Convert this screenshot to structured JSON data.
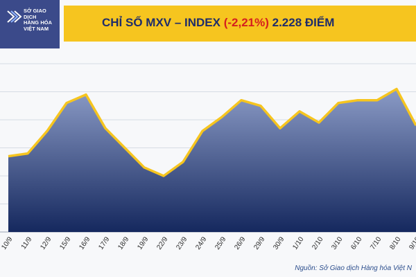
{
  "header": {
    "logo_lines": [
      "SỞ GIAO DỊCH",
      "HÀNG HÓA",
      "VIỆT NAM"
    ],
    "title_prefix": "CHỈ SỐ MXV – INDEX ",
    "title_change": "(-2,21%)",
    "title_suffix": " 2.228 ĐIỂM"
  },
  "source": "Nguồn: Sở Giao dịch Hàng hóa Việt N",
  "colors": {
    "brand": "#3b4a8a",
    "title_bar": "#f6c51f",
    "title_text": "#1f2d6a",
    "negative": "#d51f1f",
    "line": "#f6c51f",
    "area_top": "#8b9bc6",
    "area_bottom": "#15285e"
  },
  "chart_data": {
    "type": "area",
    "categories": [
      "10/9",
      "11/9",
      "12/9",
      "15/9",
      "16/9",
      "17/9",
      "18/9",
      "19/9",
      "22/9",
      "23/9",
      "24/9",
      "25/9",
      "26/9",
      "29/9",
      "30/9",
      "1/10",
      "2/10",
      "3/10",
      "6/10",
      "7/10",
      "8/10",
      "9/10"
    ],
    "values": [
      2217,
      2218,
      2226,
      2236,
      2239,
      2227,
      2220,
      2213,
      2210,
      2215,
      2226,
      2231,
      2237,
      2235,
      2227,
      2233,
      2229,
      2236,
      2237,
      2237,
      2241,
      2228
    ],
    "ylim": [
      2190,
      2250
    ],
    "grid": true
  }
}
